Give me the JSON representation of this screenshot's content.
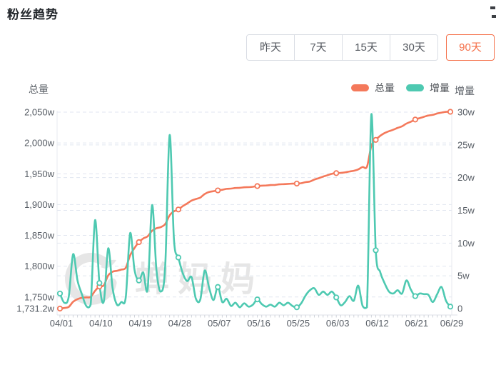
{
  "page": {
    "title": "粉丝趋势"
  },
  "tabs": {
    "items": [
      "昨天",
      "7天",
      "15天",
      "30天",
      "90天"
    ],
    "selected_index": 4,
    "selected_color": "#f5704a"
  },
  "chart": {
    "left_axis_title": "总量",
    "right_axis_title": "增量",
    "watermark": "蝉妈妈",
    "legend": [
      {
        "label": "总量",
        "color": "#f4795b"
      },
      {
        "label": "增量",
        "color": "#4ec9b1"
      }
    ]
  },
  "chart_data": {
    "type": "line",
    "title": "粉丝趋势",
    "x": [
      "04/01",
      "04/02",
      "04/03",
      "04/04",
      "04/05",
      "04/06",
      "04/07",
      "04/08",
      "04/09",
      "04/10",
      "04/11",
      "04/12",
      "04/13",
      "04/14",
      "04/15",
      "04/16",
      "04/17",
      "04/18",
      "04/19",
      "04/20",
      "04/21",
      "04/22",
      "04/23",
      "04/24",
      "04/25",
      "04/26",
      "04/27",
      "04/28",
      "04/29",
      "04/30",
      "05/01",
      "05/02",
      "05/03",
      "05/04",
      "05/05",
      "05/06",
      "05/07",
      "05/08",
      "05/09",
      "05/10",
      "05/11",
      "05/12",
      "05/13",
      "05/14",
      "05/15",
      "05/16",
      "05/17",
      "05/18",
      "05/19",
      "05/20",
      "05/21",
      "05/22",
      "05/23",
      "05/24",
      "05/25",
      "05/26",
      "05/27",
      "05/28",
      "05/29",
      "05/30",
      "05/31",
      "06/01",
      "06/02",
      "06/03",
      "06/04",
      "06/05",
      "06/06",
      "06/07",
      "06/08",
      "06/09",
      "06/10",
      "06/11",
      "06/12",
      "06/13",
      "06/14",
      "06/15",
      "06/16",
      "06/17",
      "06/18",
      "06/19",
      "06/20",
      "06/21",
      "06/22",
      "06/23",
      "06/24",
      "06/25",
      "06/26",
      "06/27",
      "06/28",
      "06/29"
    ],
    "x_label_indices": [
      0,
      9,
      18,
      27,
      36,
      45,
      54,
      63,
      72,
      81,
      89
    ],
    "marker_indices": [
      0,
      9,
      18,
      27,
      36,
      45,
      54,
      63,
      72,
      81,
      89
    ],
    "series": [
      {
        "name": "总量",
        "axis": "left",
        "color": "#f4795b",
        "unit": "w",
        "values": [
          1731.2,
          1732.1,
          1733.9,
          1742.2,
          1746.5,
          1748.7,
          1749.4,
          1750.1,
          1760.0,
          1767.0,
          1769.0,
          1785.0,
          1791.0,
          1792.5,
          1794.5,
          1797.5,
          1817.5,
          1829.5,
          1839.0,
          1845.0,
          1848.5,
          1857.5,
          1861.5,
          1863.5,
          1868.5,
          1882.5,
          1889.0,
          1892.0,
          1897.4,
          1901.7,
          1906.5,
          1909.0,
          1911.4,
          1917.2,
          1920.4,
          1921.7,
          1923.0,
          1924.0,
          1925.5,
          1926.0,
          1926.9,
          1927.2,
          1928.0,
          1928.3,
          1928.9,
          1930.0,
          1930.7,
          1931.0,
          1931.6,
          1931.9,
          1932.8,
          1933.2,
          1933.6,
          1933.9,
          1934.1,
          1934.7,
          1936.4,
          1937.4,
          1940.6,
          1942.8,
          1945.4,
          1947.6,
          1950.0,
          1951.0,
          1951.5,
          1952.3,
          1953.7,
          1954.8,
          1957.0,
          1961.0,
          1961.5,
          1995.5,
          2005.0,
          2011.5,
          2016.0,
          2019.0,
          2021.5,
          2024.5,
          2027.0,
          2031.5,
          2034.5,
          2038.0,
          2040.3,
          2042.5,
          2044.6,
          2045.6,
          2047.8,
          2049.3,
          2050.5,
          2050.6
        ]
      },
      {
        "name": "增量",
        "axis": "right",
        "color": "#4ec9b1",
        "unit": "w",
        "values": [
          2.3,
          0.9,
          1.8,
          8.3,
          4.3,
          2.2,
          0.4,
          0.6,
          13.5,
          3.9,
          1.1,
          9.2,
          3.1,
          0.6,
          1.0,
          1.7,
          11.5,
          5.9,
          4.3,
          5.5,
          3.0,
          15.8,
          5.9,
          2.6,
          6.5,
          26.5,
          10.5,
          7.8,
          5.4,
          4.2,
          4.8,
          1.5,
          1.4,
          5.8,
          3.2,
          1.3,
          3.3,
          1.0,
          1.5,
          0.4,
          0.9,
          0.2,
          0.8,
          0.3,
          0.6,
          1.4,
          0.7,
          0.3,
          0.6,
          0.3,
          0.9,
          0.5,
          0.9,
          0.4,
          0.2,
          0.8,
          2.0,
          2.8,
          3.1,
          2.1,
          2.6,
          2.1,
          2.6,
          1.7,
          0.5,
          1.0,
          1.9,
          1.2,
          3.5,
          0.4,
          0.2,
          29.7,
          8.9,
          5.6,
          3.9,
          2.6,
          2.3,
          2.8,
          2.3,
          4.3,
          2.9,
          1.9,
          2.3,
          2.2,
          2.1,
          1.0,
          2.2,
          3.3,
          1.2,
          0.3
        ]
      }
    ],
    "left_axis": {
      "min": 1731.2,
      "max": 2050,
      "min_label": "1,731.2w",
      "ticks": [
        1750,
        1800,
        1850,
        1900,
        1950,
        2000,
        2050
      ],
      "tick_labels": [
        "1,750w",
        "1,800w",
        "1,850w",
        "1,900w",
        "1,950w",
        "2,000w",
        "2,050w"
      ]
    },
    "right_axis": {
      "min": 0,
      "max": 30,
      "min_label": "0",
      "ticks": [
        5,
        10,
        15,
        20,
        25,
        30
      ],
      "tick_labels": [
        "5w",
        "10w",
        "15w",
        "20w",
        "25w",
        "30w"
      ]
    },
    "grid": {
      "dashed": true,
      "color": "#e1e6f0"
    },
    "legend_position": "top-right"
  }
}
